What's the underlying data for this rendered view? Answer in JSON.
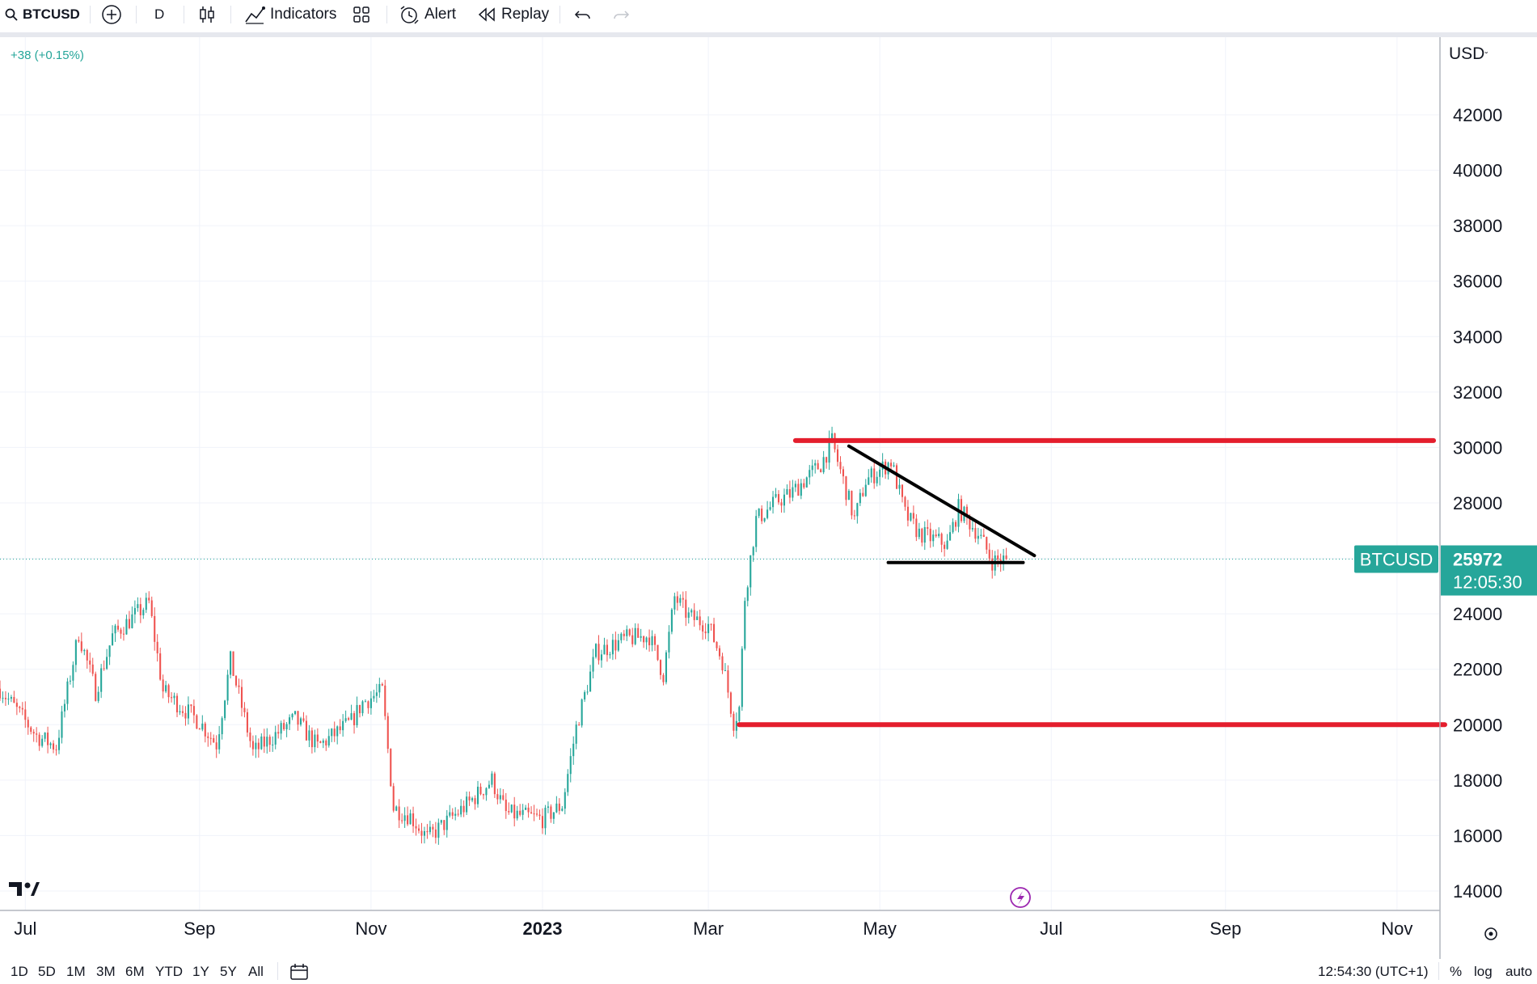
{
  "toolbar": {
    "symbol": "BTCUSD",
    "interval": "D",
    "indicators_label": "Indicators",
    "alert_label": "Alert",
    "replay_label": "Replay"
  },
  "price_change": "+38 (+0.15%)",
  "currency": "USD",
  "chart_data": {
    "type": "candlestick",
    "symbol": "BTCUSD",
    "interval": "D",
    "y_axis": {
      "ticks": [
        14000,
        16000,
        18000,
        20000,
        22000,
        24000,
        26000,
        28000,
        30000,
        32000,
        34000,
        36000,
        38000,
        40000,
        42000
      ],
      "tick_labels": [
        "14000",
        "16000",
        "18000",
        "20000",
        "22000",
        "24000",
        "",
        "28000",
        "30000",
        "32000",
        "34000",
        "36000",
        "38000",
        "40000",
        "42000"
      ],
      "range": [
        13300,
        44800
      ]
    },
    "x_axis": {
      "ticks": [
        "2022-07-01",
        "2022-09-01",
        "2022-11-01",
        "2023-01-01",
        "2023-03-01",
        "2023-05-01",
        "2023-07-01",
        "2023-09-01",
        "2023-11-01"
      ],
      "tick_labels": [
        "Jul",
        "Sep",
        "Nov",
        "2023",
        "Mar",
        "May",
        "Jul",
        "Sep",
        "Nov"
      ],
      "range": [
        "2022-06-22",
        "2023-11-16"
      ]
    },
    "price_path": [
      [
        "2022-06-22",
        21300
      ],
      [
        "2022-07-05",
        19600
      ],
      [
        "2022-07-12",
        19200
      ],
      [
        "2022-07-20",
        23300
      ],
      [
        "2022-07-26",
        21200
      ],
      [
        "2022-08-01",
        23200
      ],
      [
        "2022-08-14",
        24400
      ],
      [
        "2022-08-19",
        21200
      ],
      [
        "2022-09-01",
        20100
      ],
      [
        "2022-09-07",
        19300
      ],
      [
        "2022-09-12",
        22300
      ],
      [
        "2022-09-20",
        19000
      ],
      [
        "2022-10-05",
        20200
      ],
      [
        "2022-10-13",
        19200
      ],
      [
        "2022-10-25",
        20100
      ],
      [
        "2022-10-29",
        20800
      ],
      [
        "2022-11-05",
        21200
      ],
      [
        "2022-11-09",
        17000
      ],
      [
        "2022-11-15",
        16700
      ],
      [
        "2022-11-21",
        15900
      ],
      [
        "2022-12-05",
        17100
      ],
      [
        "2022-12-14",
        18000
      ],
      [
        "2022-12-19",
        16800
      ],
      [
        "2023-01-01",
        16600
      ],
      [
        "2023-01-08",
        17100
      ],
      [
        "2023-01-13",
        19900
      ],
      [
        "2023-01-20",
        22600
      ],
      [
        "2023-01-31",
        23100
      ],
      [
        "2023-02-08",
        23200
      ],
      [
        "2023-02-13",
        21800
      ],
      [
        "2023-02-17",
        24600
      ],
      [
        "2023-02-22",
        23900
      ],
      [
        "2023-03-01",
        23600
      ],
      [
        "2023-03-06",
        22300
      ],
      [
        "2023-03-10",
        20100
      ],
      [
        "2023-03-12",
        20600
      ],
      [
        "2023-03-14",
        24600
      ],
      [
        "2023-03-18",
        27400
      ],
      [
        "2023-03-26",
        28100
      ],
      [
        "2023-03-30",
        28300
      ],
      [
        "2023-04-10",
        29400
      ],
      [
        "2023-04-14",
        30200
      ],
      [
        "2023-04-22",
        27400
      ],
      [
        "2023-04-26",
        28800
      ],
      [
        "2023-05-05",
        29500
      ],
      [
        "2023-05-10",
        27600
      ],
      [
        "2023-05-15",
        26900
      ],
      [
        "2023-05-25",
        26500
      ],
      [
        "2023-05-29",
        27800
      ],
      [
        "2023-06-05",
        26900
      ],
      [
        "2023-06-10",
        25900
      ],
      [
        "2023-06-15",
        25972
      ]
    ],
    "last_price": 25972,
    "last_price_label": "25972",
    "countdown": "12:05:30",
    "drawings": [
      {
        "type": "horizontal",
        "color": "#e41e2d",
        "y": 30250,
        "x_start": "2023-04-01",
        "x_end": "2023-11-14"
      },
      {
        "type": "horizontal",
        "color": "#e41e2d",
        "y": 20000,
        "x_start": "2023-03-12",
        "x_end": "2023-11-18"
      },
      {
        "type": "trendline",
        "color": "#000000",
        "from": [
          "2023-04-20",
          30050
        ],
        "to": [
          "2023-06-25",
          26100
        ]
      },
      {
        "type": "trendline",
        "color": "#000000",
        "from": [
          "2023-05-04",
          25850
        ],
        "to": [
          "2023-06-21",
          25850
        ]
      }
    ]
  },
  "bottom": {
    "ranges": [
      "1D",
      "5D",
      "1M",
      "3M",
      "6M",
      "YTD",
      "1Y",
      "5Y",
      "All"
    ],
    "time": "12:54:30 (UTC+1)",
    "percent": "%",
    "log": "log",
    "auto": "auto"
  },
  "colors": {
    "up": "#26a69a",
    "down": "#ef5350",
    "level": "#e41e2d",
    "price_line": "#26a69a"
  }
}
